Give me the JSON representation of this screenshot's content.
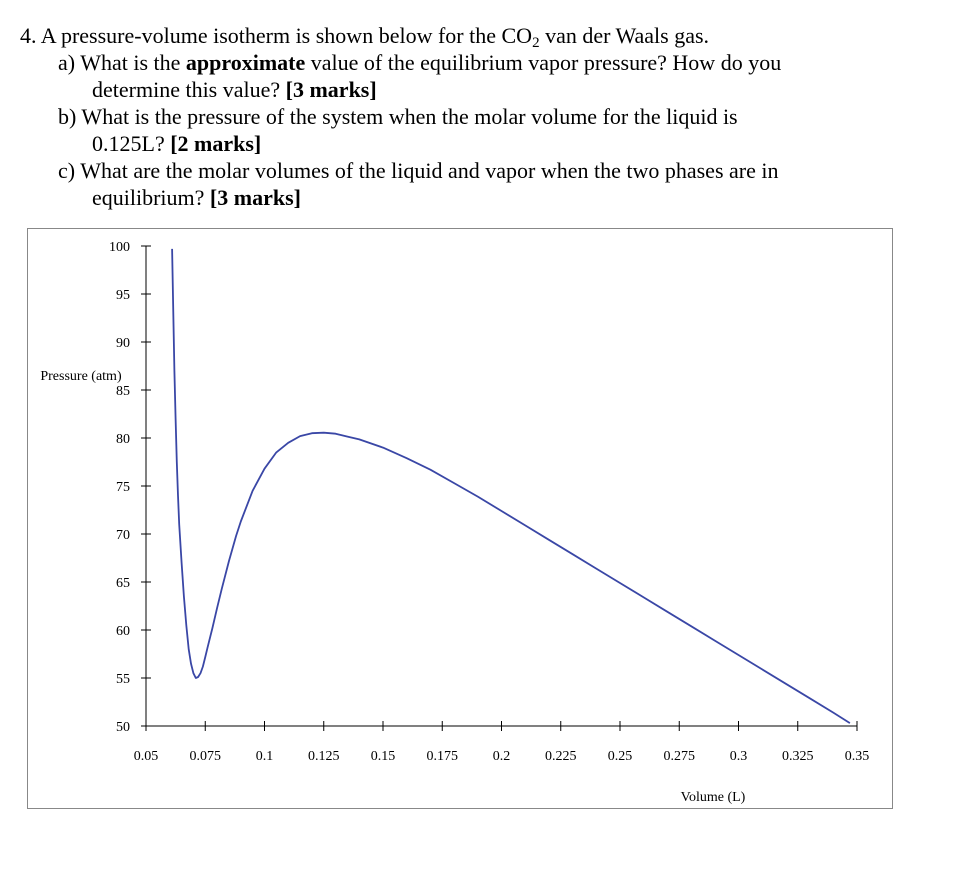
{
  "question": {
    "head_pre": "4. A pressure-volume isotherm is shown below for the CO",
    "head_sub": "2",
    "head_post": " van der Waals gas.",
    "a_line1_pre": "a)  What is the ",
    "a_line1_bold": "approximate",
    "a_line1_post": " value of the equilibrium vapor pressure? How do you",
    "a_line2": "determine this value? ",
    "a_marks": "[3 marks]",
    "b_line1": "b)  What is the pressure of the system when the molar volume for the liquid is",
    "b_line2": "0.125L? ",
    "b_marks": "[2 marks]",
    "c_line1": "c)  What are the molar volumes of the liquid and vapor when the two phases are in",
    "c_line2": "equilibrium? ",
    "c_marks": "[3 marks]"
  },
  "chart_data": {
    "type": "line",
    "xlabel": "Volume (L)",
    "ylabel": "Pressure (atm)",
    "xlim": [
      0.05,
      0.35
    ],
    "ylim": [
      50,
      100
    ],
    "x_ticks": [
      "0.05",
      "0.075",
      "0.1",
      "0.125",
      "0.15",
      "0.175",
      "0.2",
      "0.225",
      "0.25",
      "0.275",
      "0.3",
      "0.325",
      "0.35"
    ],
    "y_ticks": [
      "100",
      "95",
      "90",
      "85",
      "80",
      "75",
      "70",
      "65",
      "60",
      "55",
      "50"
    ],
    "line_color": "#3a47a6",
    "grid": false,
    "series": [
      {
        "x": [
          0.061,
          0.0615,
          0.062,
          0.0625,
          0.063,
          0.0635,
          0.064,
          0.065,
          0.066,
          0.067,
          0.068,
          0.069,
          0.07,
          0.071,
          0.072,
          0.073,
          0.074,
          0.075,
          0.076,
          0.078,
          0.08,
          0.082,
          0.085,
          0.088,
          0.09,
          0.095,
          0.1,
          0.105,
          0.11,
          0.115,
          0.12,
          0.125,
          0.13,
          0.135,
          0.14,
          0.15,
          0.16,
          0.17,
          0.18,
          0.19,
          0.2,
          0.21,
          0.22,
          0.23,
          0.24,
          0.25,
          0.26,
          0.27,
          0.28,
          0.29,
          0.3,
          0.31,
          0.32,
          0.33,
          0.34,
          0.347
        ],
        "y": [
          99.7,
          93.0,
          87.0,
          82.0,
          77.5,
          74.0,
          71.0,
          67.0,
          63.5,
          60.5,
          58.0,
          56.5,
          55.5,
          55.0,
          55.1,
          55.5,
          56.2,
          57.2,
          58.2,
          60.2,
          62.3,
          64.3,
          67.2,
          69.8,
          71.3,
          74.5,
          76.8,
          78.5,
          79.5,
          80.2,
          80.5,
          80.55,
          80.45,
          80.15,
          79.85,
          79.0,
          77.9,
          76.7,
          75.3,
          73.9,
          72.4,
          70.9,
          69.4,
          67.9,
          66.4,
          64.9,
          63.4,
          61.9,
          60.4,
          58.9,
          57.4,
          55.9,
          54.4,
          52.9,
          51.4,
          50.3
        ]
      }
    ]
  }
}
